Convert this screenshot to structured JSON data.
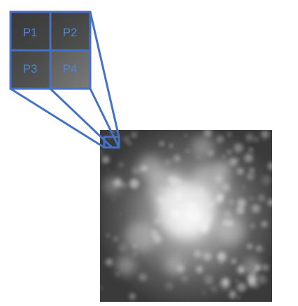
{
  "diagram": {
    "patches": [
      {
        "label": "P1"
      },
      {
        "label": "P2"
      },
      {
        "label": "P3"
      },
      {
        "label": "P4"
      }
    ],
    "colors": {
      "outline": "#4472c4",
      "label": "#4f86d4",
      "image_dark": "#3c3c3c",
      "image_bright": "#e6e6e6"
    }
  }
}
